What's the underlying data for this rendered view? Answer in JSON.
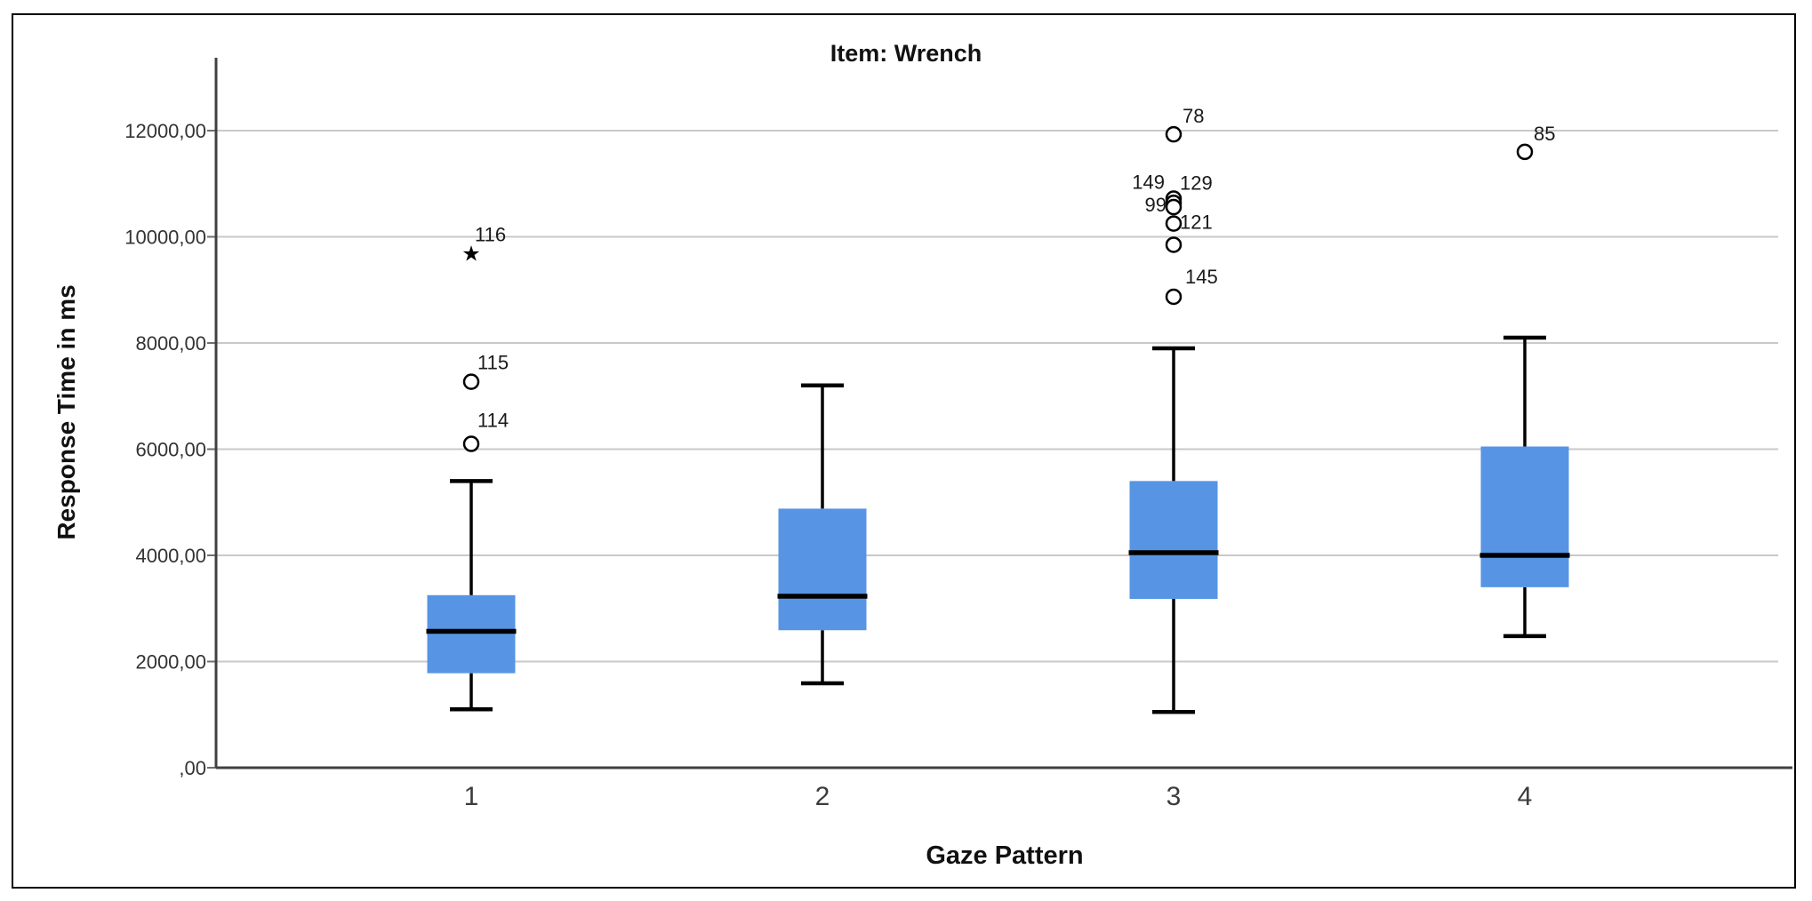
{
  "frame": {
    "border_color": "#000000",
    "background": "#FFFFFF"
  },
  "chart_data": {
    "type": "boxplot",
    "title": "Item: Wrench",
    "xlabel": "Gaze Pattern",
    "ylabel": "Response Time in ms",
    "categories": [
      "1",
      "2",
      "3",
      "4"
    ],
    "y_ticks": [
      {
        "label": ",00",
        "value": 0
      },
      {
        "label": "2000,00",
        "value": 2000
      },
      {
        "label": "4000,00",
        "value": 4000
      },
      {
        "label": "6000,00",
        "value": 6000
      },
      {
        "label": "8000,00",
        "value": 8000
      },
      {
        "label": "10000,00",
        "value": 10000
      },
      {
        "label": "12000,00",
        "value": 12000
      }
    ],
    "ylim": [
      0,
      13400
    ],
    "grid": true,
    "legend_position": "none",
    "colors": {
      "box_fill": "#5795E4",
      "box_line": "#000000",
      "grid": "#C9C9C9",
      "axis": "#404040"
    },
    "series": [
      {
        "category": "1",
        "whisker_low": 1100,
        "q1": 1780,
        "median": 2570,
        "q3": 3250,
        "whisker_high": 5400,
        "outliers": [
          {
            "value": 6100,
            "label": "114",
            "marker": "circle",
            "anchor": "start",
            "dx": 7,
            "dy": -19
          },
          {
            "value": 7270,
            "label": "115",
            "marker": "circle",
            "anchor": "start",
            "dx": 7,
            "dy": -14
          },
          {
            "value": 9680,
            "label": "116",
            "marker": "star",
            "anchor": "start",
            "dx": 4,
            "dy": -14
          }
        ]
      },
      {
        "category": "2",
        "whisker_low": 1590,
        "q1": 2590,
        "median": 3230,
        "q3": 4880,
        "whisker_high": 7200,
        "outliers": []
      },
      {
        "category": "3",
        "whisker_low": 1050,
        "q1": 3180,
        "median": 4050,
        "q3": 5400,
        "whisker_high": 7900,
        "outliers": [
          {
            "value": 11930,
            "label": "78",
            "marker": "circle",
            "anchor": "start",
            "dx": 10,
            "dy": -13
          },
          {
            "value": 10720,
            "label": "149",
            "marker": "circle",
            "anchor": "end",
            "dx": -10,
            "dy": -11
          },
          {
            "value": 10640,
            "label": "129",
            "marker": "circle",
            "anchor": "start",
            "dx": 7,
            "dy": -15
          },
          {
            "value": 10560,
            "label": "99",
            "marker": "circle",
            "anchor": "end",
            "dx": -8,
            "dy": 5
          },
          {
            "value": 10250,
            "label": "121",
            "marker": "circle",
            "anchor": "start",
            "dx": 7,
            "dy": 6
          },
          {
            "value": 9850,
            "label": "",
            "marker": "circle"
          },
          {
            "value": 8870,
            "label": "145",
            "marker": "circle",
            "anchor": "start",
            "dx": 13,
            "dy": -15
          }
        ]
      },
      {
        "category": "4",
        "whisker_low": 2480,
        "q1": 3400,
        "median": 4000,
        "q3": 6050,
        "whisker_high": 8100,
        "outliers": [
          {
            "value": 11600,
            "label": "85",
            "marker": "circle",
            "anchor": "start",
            "dx": 10,
            "dy": -13
          }
        ]
      }
    ]
  }
}
